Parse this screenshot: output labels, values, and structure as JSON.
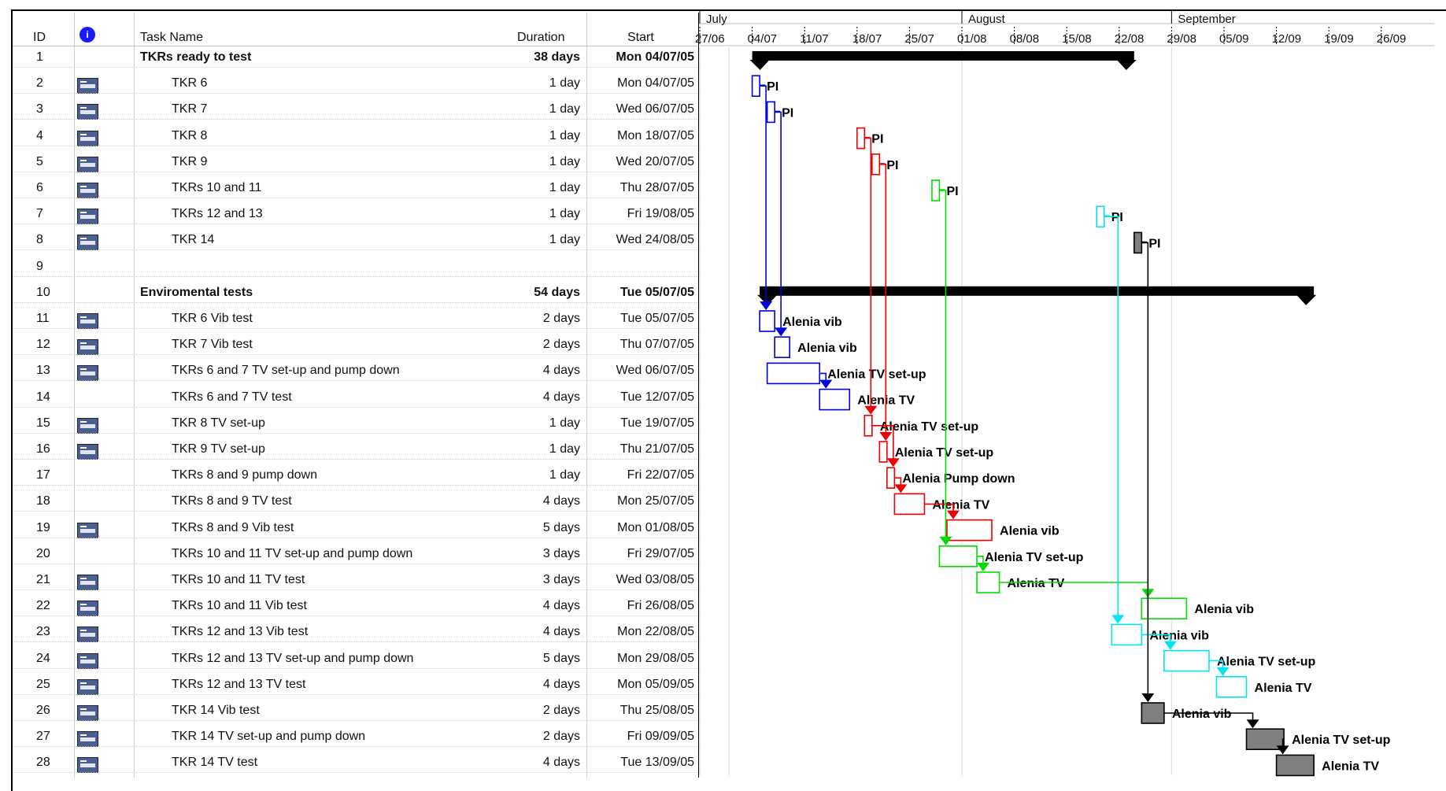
{
  "header": {
    "id": "ID",
    "indicator_icon": "info-indicator-icon",
    "task_name": "Task Name",
    "duration": "Duration",
    "start": "Start"
  },
  "timeline": {
    "months": [
      {
        "label": "July",
        "date": "2005-06-27"
      },
      {
        "label": "August",
        "date": "2005-08-01"
      },
      {
        "label": "September",
        "date": "2005-08-29"
      }
    ],
    "weeks": [
      {
        "label": "27/06",
        "date": "2005-06-27"
      },
      {
        "label": "04/07",
        "date": "2005-07-04"
      },
      {
        "label": "11/07",
        "date": "2005-07-11"
      },
      {
        "label": "18/07",
        "date": "2005-07-18"
      },
      {
        "label": "25/07",
        "date": "2005-07-25"
      },
      {
        "label": "01/08",
        "date": "2005-08-01"
      },
      {
        "label": "08/08",
        "date": "2005-08-08"
      },
      {
        "label": "15/08",
        "date": "2005-08-15"
      },
      {
        "label": "22/08",
        "date": "2005-08-22"
      },
      {
        "label": "29/08",
        "date": "2005-08-29"
      },
      {
        "label": "05/09",
        "date": "2005-09-05"
      },
      {
        "label": "12/09",
        "date": "2005-09-12"
      },
      {
        "label": "19/09",
        "date": "2005-09-19"
      },
      {
        "label": "26/09",
        "date": "2005-09-26"
      }
    ]
  },
  "colors": {
    "blue": "#0000dd",
    "red": "#ee0000",
    "green": "#00dd00",
    "cyan": "#00e5f0",
    "black": "#000000",
    "gray": "#808080",
    "summary": "#000000",
    "icon": "#4a5e8f"
  },
  "tasks": [
    {
      "id": "1",
      "name": "TKRs ready to test",
      "duration": "38 days",
      "start": "Mon 04/07/05",
      "summary": true,
      "icon": false,
      "indent": 0,
      "bar_start": "2005-07-04",
      "bar_end": "2005-08-24"
    },
    {
      "id": "2",
      "name": "TKR 6",
      "duration": "1 day",
      "start": "Mon 04/07/05",
      "icon": true,
      "indent": 1,
      "bar_start": "2005-07-04",
      "bar_end": "2005-07-05",
      "color": "blue",
      "label": "PI"
    },
    {
      "id": "3",
      "name": "TKR 7",
      "duration": "1 day",
      "start": "Wed 06/07/05",
      "icon": true,
      "indent": 1,
      "bar_start": "2005-07-06",
      "bar_end": "2005-07-07",
      "color": "blue",
      "label": "PI"
    },
    {
      "id": "4",
      "name": "TKR 8",
      "duration": "1 day",
      "start": "Mon 18/07/05",
      "icon": true,
      "indent": 1,
      "bar_start": "2005-07-18",
      "bar_end": "2005-07-19",
      "color": "red",
      "label": "PI"
    },
    {
      "id": "5",
      "name": "TKR 9",
      "duration": "1 day",
      "start": "Wed 20/07/05",
      "icon": true,
      "indent": 1,
      "bar_start": "2005-07-20",
      "bar_end": "2005-07-21",
      "color": "red",
      "label": "PI"
    },
    {
      "id": "6",
      "name": "TKRs 10 and 11",
      "duration": "1 day",
      "start": "Thu 28/07/05",
      "icon": true,
      "indent": 1,
      "bar_start": "2005-07-28",
      "bar_end": "2005-07-29",
      "color": "green",
      "label": "PI"
    },
    {
      "id": "7",
      "name": "TKRs 12 and 13",
      "duration": "1 day",
      "start": "Fri 19/08/05",
      "icon": true,
      "indent": 1,
      "bar_start": "2005-08-19",
      "bar_end": "2005-08-20",
      "color": "cyan",
      "label": "PI"
    },
    {
      "id": "8",
      "name": "TKR 14",
      "duration": "1 day",
      "start": "Wed 24/08/05",
      "icon": true,
      "indent": 1,
      "bar_start": "2005-08-24",
      "bar_end": "2005-08-25",
      "color": "gray",
      "label": "PI"
    },
    {
      "id": "9",
      "name": "",
      "duration": "",
      "start": "",
      "icon": false,
      "indent": 1
    },
    {
      "id": "10",
      "name": "Enviromental tests",
      "duration": "54 days",
      "start": "Tue 05/07/05",
      "summary": true,
      "icon": false,
      "indent": 0,
      "bar_start": "2005-07-05",
      "bar_end": "2005-09-17"
    },
    {
      "id": "11",
      "name": "TKR 6 Vib test",
      "duration": "2 days",
      "start": "Tue 05/07/05",
      "icon": true,
      "indent": 1,
      "bar_start": "2005-07-05",
      "bar_end": "2005-07-07",
      "color": "blue",
      "label": "Alenia vib"
    },
    {
      "id": "12",
      "name": "TKR 7 Vib test",
      "duration": "2 days",
      "start": "Thu 07/07/05",
      "icon": true,
      "indent": 1,
      "bar_start": "2005-07-07",
      "bar_end": "2005-07-09",
      "color": "blue",
      "label": "Alenia vib"
    },
    {
      "id": "13",
      "name": "TKRs 6 and 7 TV set-up and pump down",
      "duration": "4 days",
      "start": "Wed 06/07/05",
      "icon": true,
      "indent": 1,
      "bar_start": "2005-07-06",
      "bar_end": "2005-07-13",
      "color": "blue",
      "label": "Alenia TV set-up"
    },
    {
      "id": "14",
      "name": "TKRs 6 and 7 TV test",
      "duration": "4 days",
      "start": "Tue 12/07/05",
      "icon": false,
      "indent": 1,
      "bar_start": "2005-07-13",
      "bar_end": "2005-07-17",
      "color": "blue",
      "label": "Alenia TV"
    },
    {
      "id": "15",
      "name": "TKR 8 TV set-up",
      "duration": "1 day",
      "start": "Tue 19/07/05",
      "icon": true,
      "indent": 1,
      "bar_start": "2005-07-19",
      "bar_end": "2005-07-20",
      "color": "red",
      "label": "Alenia TV set-up"
    },
    {
      "id": "16",
      "name": "TKR 9 TV set-up",
      "duration": "1 day",
      "start": "Thu 21/07/05",
      "icon": true,
      "indent": 1,
      "bar_start": "2005-07-21",
      "bar_end": "2005-07-22",
      "color": "red",
      "label": "Alenia TV set-up"
    },
    {
      "id": "17",
      "name": "TKRs 8 and 9 pump down",
      "duration": "1 day",
      "start": "Fri 22/07/05",
      "icon": false,
      "indent": 1,
      "bar_start": "2005-07-22",
      "bar_end": "2005-07-23",
      "color": "red",
      "label": "Alenia Pump down"
    },
    {
      "id": "18",
      "name": "TKRs 8 and 9 TV test",
      "duration": "4 days",
      "start": "Mon 25/07/05",
      "icon": false,
      "indent": 1,
      "bar_start": "2005-07-23",
      "bar_end": "2005-07-27",
      "color": "red",
      "label": "Alenia TV"
    },
    {
      "id": "19",
      "name": "TKRs 8 and 9 Vib test",
      "duration": "5 days",
      "start": "Mon 01/08/05",
      "icon": true,
      "indent": 1,
      "bar_start": "2005-07-30",
      "bar_end": "2005-08-05",
      "color": "red",
      "label": "Alenia vib"
    },
    {
      "id": "20",
      "name": "TKRs 10 and 11 TV set-up and pump down",
      "duration": "3 days",
      "start": "Fri 29/07/05",
      "icon": false,
      "indent": 1,
      "bar_start": "2005-07-29",
      "bar_end": "2005-08-03",
      "color": "green",
      "label": "Alenia TV set-up"
    },
    {
      "id": "21",
      "name": "TKRs 10 and 11 TV test",
      "duration": "3 days",
      "start": "Wed 03/08/05",
      "icon": true,
      "indent": 1,
      "bar_start": "2005-08-03",
      "bar_end": "2005-08-06",
      "color": "green",
      "label": "Alenia TV"
    },
    {
      "id": "22",
      "name": "TKRs 10 and 11 Vib test",
      "duration": "4 days",
      "start": "Fri 26/08/05",
      "icon": true,
      "indent": 1,
      "bar_start": "2005-08-25",
      "bar_end": "2005-08-31",
      "color": "green",
      "label": "Alenia vib"
    },
    {
      "id": "23",
      "name": "TKRs 12 and 13 Vib test",
      "duration": "4 days",
      "start": "Mon 22/08/05",
      "icon": true,
      "indent": 1,
      "bar_start": "2005-08-21",
      "bar_end": "2005-08-25",
      "color": "cyan",
      "label": "Alenia vib"
    },
    {
      "id": "24",
      "name": "TKRs 12 and 13 TV set-up and pump down",
      "duration": "5 days",
      "start": "Mon 29/08/05",
      "icon": true,
      "indent": 1,
      "bar_start": "2005-08-28",
      "bar_end": "2005-09-03",
      "color": "cyan",
      "label": "Alenia TV set-up"
    },
    {
      "id": "25",
      "name": "TKRs 12 and 13 TV test",
      "duration": "4 days",
      "start": "Mon 05/09/05",
      "icon": true,
      "indent": 1,
      "bar_start": "2005-09-04",
      "bar_end": "2005-09-08",
      "color": "cyan",
      "label": "Alenia TV"
    },
    {
      "id": "26",
      "name": "TKR 14 Vib test",
      "duration": "2 days",
      "start": "Thu 25/08/05",
      "icon": true,
      "indent": 1,
      "bar_start": "2005-08-25",
      "bar_end": "2005-08-28",
      "color": "gray",
      "label": "Alenia vib"
    },
    {
      "id": "27",
      "name": "TKR 14 TV set-up and pump down",
      "duration": "2 days",
      "start": "Fri 09/09/05",
      "icon": true,
      "indent": 1,
      "bar_start": "2005-09-08",
      "bar_end": "2005-09-13",
      "color": "gray",
      "label": "Alenia TV set-up"
    },
    {
      "id": "28",
      "name": "TKR 14 TV test",
      "duration": "4 days",
      "start": "Tue 13/09/05",
      "icon": true,
      "indent": 1,
      "bar_start": "2005-09-12",
      "bar_end": "2005-09-17",
      "color": "gray",
      "label": "Alenia TV"
    }
  ],
  "links": [
    {
      "from": "2",
      "to": "11",
      "color": "blue"
    },
    {
      "from": "3",
      "to": "12",
      "color": "blue"
    },
    {
      "from": "13",
      "to": "14",
      "color": "blue"
    },
    {
      "from": "4",
      "to": "15",
      "color": "red"
    },
    {
      "from": "5",
      "to": "16",
      "color": "red"
    },
    {
      "from": "15",
      "to": "17",
      "color": "red"
    },
    {
      "from": "17",
      "to": "18",
      "color": "red"
    },
    {
      "from": "18",
      "to": "19",
      "color": "red"
    },
    {
      "from": "6",
      "to": "20",
      "color": "green"
    },
    {
      "from": "20",
      "to": "21",
      "color": "green"
    },
    {
      "from": "21",
      "to": "22",
      "color": "green"
    },
    {
      "from": "7",
      "to": "23",
      "color": "cyan"
    },
    {
      "from": "23",
      "to": "24",
      "color": "cyan"
    },
    {
      "from": "24",
      "to": "25",
      "color": "cyan"
    },
    {
      "from": "8",
      "to": "26",
      "color": "black"
    },
    {
      "from": "26",
      "to": "27",
      "color": "black"
    },
    {
      "from": "27",
      "to": "28",
      "color": "black"
    }
  ]
}
